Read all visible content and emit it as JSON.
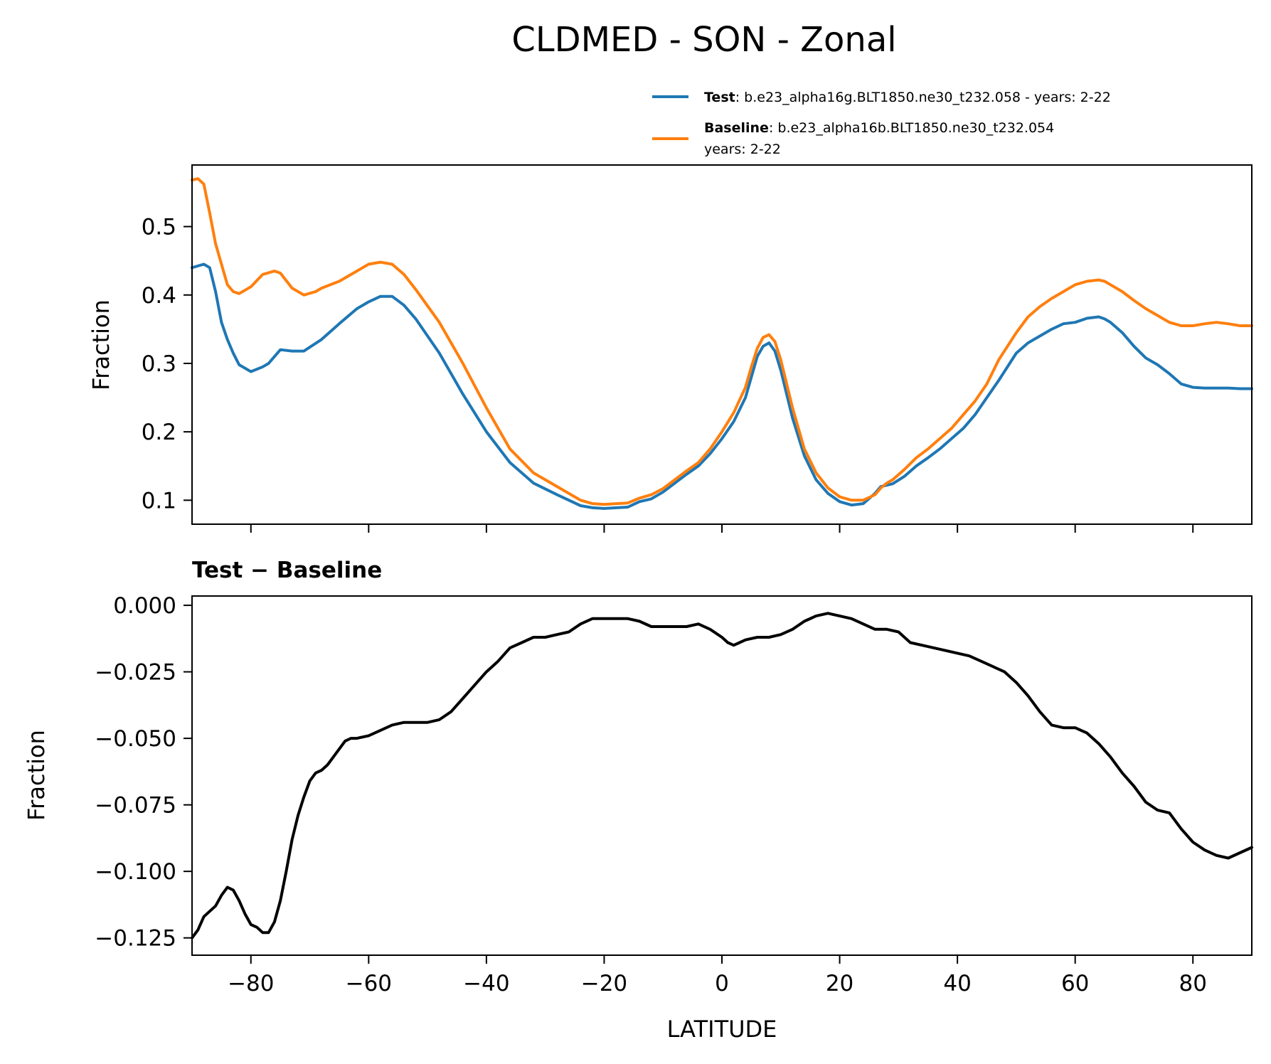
{
  "chart_data": [
    {
      "type": "line",
      "title": "CLDMED - SON - Zonal",
      "xlabel": "",
      "ylabel": "Fraction",
      "xlim": [
        -90,
        90
      ],
      "ylim": [
        0.065,
        0.59
      ],
      "xticks": [
        -80,
        -60,
        -40,
        -20,
        0,
        20,
        40,
        60,
        80
      ],
      "yticks": [
        0.1,
        0.2,
        0.3,
        0.4,
        0.5
      ],
      "ytick_labels": [
        "0.1",
        "0.2",
        "0.3",
        "0.4",
        "0.5"
      ],
      "legend": {
        "position": "above-right",
        "entries": [
          {
            "name_bold": "Test",
            "text": ": b.e23_alpha16g.BLT1850.ne30_t232.058 - years: 2-22",
            "text2": ""
          },
          {
            "name_bold": "Baseline",
            "text": ": b.e23_alpha16b.BLT1850.ne30_t232.054",
            "text2": "years: 2-22"
          }
        ]
      },
      "series": [
        {
          "name": "Test",
          "color": "#1f77b4",
          "x": [
            -90,
            -88,
            -87,
            -86,
            -85,
            -84,
            -83,
            -82,
            -80,
            -78,
            -77,
            -76,
            -75,
            -73,
            -71,
            -68,
            -65,
            -62,
            -60,
            -58,
            -56,
            -54,
            -52,
            -48,
            -44,
            -40,
            -36,
            -32,
            -28,
            -24,
            -22,
            -20,
            -16,
            -14,
            -12,
            -10,
            -8,
            -6,
            -4,
            -2,
            0,
            2,
            4,
            5,
            6,
            7,
            8,
            9,
            10,
            12,
            14,
            16,
            18,
            20,
            22,
            24,
            26,
            27,
            28,
            29,
            31,
            33,
            35,
            37,
            39,
            41,
            43,
            45,
            47,
            50,
            52,
            54,
            56,
            58,
            60,
            62,
            64,
            65,
            66,
            68,
            70,
            72,
            74,
            76,
            78,
            80,
            82,
            84,
            86,
            88,
            90
          ],
          "y": [
            0.44,
            0.445,
            0.44,
            0.405,
            0.36,
            0.335,
            0.315,
            0.298,
            0.288,
            0.295,
            0.3,
            0.31,
            0.32,
            0.318,
            0.318,
            0.335,
            0.358,
            0.38,
            0.39,
            0.398,
            0.398,
            0.385,
            0.365,
            0.315,
            0.255,
            0.2,
            0.155,
            0.125,
            0.108,
            0.092,
            0.089,
            0.088,
            0.09,
            0.098,
            0.102,
            0.112,
            0.125,
            0.138,
            0.15,
            0.168,
            0.19,
            0.215,
            0.25,
            0.28,
            0.31,
            0.325,
            0.33,
            0.318,
            0.29,
            0.22,
            0.165,
            0.13,
            0.11,
            0.098,
            0.093,
            0.095,
            0.11,
            0.12,
            0.122,
            0.124,
            0.135,
            0.15,
            0.162,
            0.175,
            0.19,
            0.205,
            0.225,
            0.25,
            0.275,
            0.315,
            0.33,
            0.34,
            0.35,
            0.358,
            0.36,
            0.366,
            0.368,
            0.365,
            0.36,
            0.345,
            0.325,
            0.308,
            0.298,
            0.285,
            0.27,
            0.265,
            0.264,
            0.264,
            0.264,
            0.263,
            0.263
          ]
        },
        {
          "name": "Baseline",
          "color": "#ff7f0e",
          "x": [
            -90,
            -89,
            -88,
            -87,
            -86,
            -85,
            -84,
            -83,
            -82,
            -80,
            -78,
            -76,
            -75,
            -73,
            -71,
            -69,
            -68,
            -65,
            -62,
            -60,
            -58,
            -56,
            -54,
            -52,
            -48,
            -44,
            -40,
            -36,
            -32,
            -28,
            -24,
            -22,
            -20,
            -16,
            -14,
            -12,
            -10,
            -8,
            -6,
            -4,
            -2,
            0,
            2,
            4,
            5,
            6,
            7,
            8,
            9,
            10,
            12,
            14,
            16,
            18,
            20,
            22,
            24,
            26,
            27,
            28,
            29,
            31,
            33,
            35,
            37,
            39,
            41,
            43,
            45,
            47,
            50,
            52,
            54,
            56,
            58,
            60,
            62,
            64,
            65,
            66,
            68,
            70,
            72,
            74,
            76,
            78,
            80,
            82,
            84,
            86,
            88,
            90
          ],
          "y": [
            0.568,
            0.57,
            0.562,
            0.52,
            0.475,
            0.445,
            0.415,
            0.405,
            0.402,
            0.412,
            0.43,
            0.435,
            0.432,
            0.41,
            0.4,
            0.405,
            0.41,
            0.42,
            0.435,
            0.445,
            0.448,
            0.445,
            0.43,
            0.408,
            0.36,
            0.3,
            0.235,
            0.175,
            0.14,
            0.12,
            0.1,
            0.095,
            0.094,
            0.096,
            0.103,
            0.108,
            0.117,
            0.13,
            0.143,
            0.155,
            0.175,
            0.2,
            0.228,
            0.265,
            0.295,
            0.322,
            0.338,
            0.342,
            0.332,
            0.305,
            0.235,
            0.175,
            0.14,
            0.118,
            0.105,
            0.1,
            0.1,
            0.108,
            0.118,
            0.125,
            0.13,
            0.145,
            0.162,
            0.175,
            0.19,
            0.205,
            0.225,
            0.245,
            0.27,
            0.305,
            0.345,
            0.368,
            0.383,
            0.395,
            0.405,
            0.415,
            0.42,
            0.422,
            0.42,
            0.415,
            0.405,
            0.392,
            0.38,
            0.37,
            0.36,
            0.355,
            0.355,
            0.358,
            0.36,
            0.358,
            0.355,
            0.355
          ]
        }
      ]
    },
    {
      "type": "line",
      "title": "Test − Baseline",
      "xlabel": "LATITUDE",
      "ylabel": "Fraction",
      "xlim": [
        -90,
        90
      ],
      "ylim": [
        -0.1315,
        0.0035
      ],
      "xticks": [
        -80,
        -60,
        -40,
        -20,
        0,
        20,
        40,
        60,
        80
      ],
      "xtick_labels": [
        "−80",
        "−60",
        "−40",
        "−20",
        "0",
        "20",
        "40",
        "60",
        "80"
      ],
      "yticks": [
        0.0,
        -0.025,
        -0.05,
        -0.075,
        -0.1,
        -0.125
      ],
      "ytick_labels": [
        "0.000",
        "−0.025",
        "−0.050",
        "−0.075",
        "−0.100",
        "−0.125"
      ],
      "series": [
        {
          "name": "Test − Baseline",
          "color": "#000000",
          "x": [
            -90,
            -89,
            -88,
            -87,
            -86,
            -85,
            -84,
            -83,
            -82,
            -81,
            -80,
            -79,
            -78,
            -77,
            -76,
            -75,
            -74,
            -73,
            -72,
            -71,
            -70,
            -69,
            -68,
            -67,
            -66,
            -64,
            -63,
            -62,
            -60,
            -58,
            -56,
            -54,
            -52,
            -50,
            -48,
            -46,
            -44,
            -42,
            -40,
            -38,
            -36,
            -34,
            -32,
            -30,
            -28,
            -26,
            -24,
            -22,
            -20,
            -18,
            -16,
            -14,
            -12,
            -10,
            -8,
            -6,
            -4,
            -2,
            0,
            1,
            2,
            3,
            4,
            6,
            8,
            10,
            12,
            14,
            16,
            18,
            20,
            22,
            24,
            26,
            28,
            30,
            32,
            34,
            36,
            38,
            40,
            42,
            44,
            46,
            48,
            50,
            52,
            54,
            56,
            58,
            60,
            62,
            64,
            66,
            68,
            70,
            72,
            74,
            76,
            78,
            80,
            82,
            84,
            86,
            88,
            90
          ],
          "y": [
            -0.125,
            -0.122,
            -0.117,
            -0.115,
            -0.113,
            -0.109,
            -0.106,
            -0.107,
            -0.111,
            -0.116,
            -0.12,
            -0.121,
            -0.123,
            -0.123,
            -0.119,
            -0.111,
            -0.1,
            -0.088,
            -0.079,
            -0.072,
            -0.066,
            -0.063,
            -0.062,
            -0.06,
            -0.057,
            -0.051,
            -0.05,
            -0.05,
            -0.049,
            -0.047,
            -0.045,
            -0.044,
            -0.044,
            -0.044,
            -0.043,
            -0.04,
            -0.035,
            -0.03,
            -0.025,
            -0.021,
            -0.016,
            -0.014,
            -0.012,
            -0.012,
            -0.011,
            -0.01,
            -0.007,
            -0.005,
            -0.005,
            -0.005,
            -0.005,
            -0.006,
            -0.008,
            -0.008,
            -0.008,
            -0.008,
            -0.007,
            -0.009,
            -0.012,
            -0.014,
            -0.015,
            -0.014,
            -0.013,
            -0.012,
            -0.012,
            -0.011,
            -0.009,
            -0.006,
            -0.004,
            -0.003,
            -0.004,
            -0.005,
            -0.007,
            -0.009,
            -0.009,
            -0.01,
            -0.014,
            -0.015,
            -0.016,
            -0.017,
            -0.018,
            -0.019,
            -0.021,
            -0.023,
            -0.025,
            -0.029,
            -0.034,
            -0.04,
            -0.045,
            -0.046,
            -0.046,
            -0.048,
            -0.052,
            -0.057,
            -0.063,
            -0.068,
            -0.074,
            -0.077,
            -0.078,
            -0.084,
            -0.089,
            -0.092,
            -0.094,
            -0.095,
            -0.093,
            -0.091
          ]
        }
      ]
    }
  ]
}
